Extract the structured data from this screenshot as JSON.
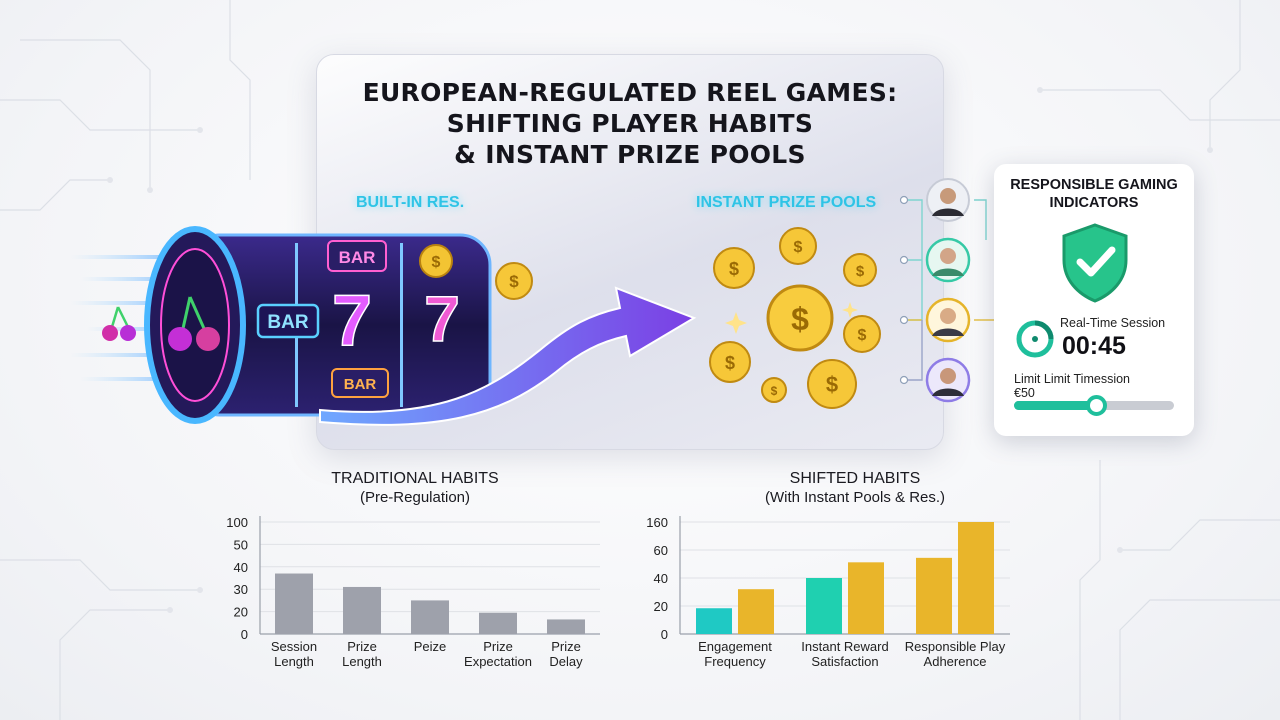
{
  "title": {
    "line1": "EUROPEAN-REGULATED REEL GAMES:",
    "line2": "SHIFTING PLAYER HABITS",
    "line3": "& INSTANT PRIZE POOLS"
  },
  "hero": {
    "left_label": "BUILT-IN RES.",
    "right_label": "INSTANT PRIZE POOLS",
    "reel_symbols": [
      "BAR",
      "7",
      "7",
      "BAR",
      "BAR"
    ]
  },
  "responsible_gaming": {
    "title_line1": "RESPONSIBLE GAMING",
    "title_line2": "INDICATORS",
    "session_label": "Real-Time Session",
    "session_time": "00:45",
    "limit_label": "Limit Limit Timession",
    "limit_value": "€50",
    "limit_fraction": 0.51
  },
  "colors": {
    "traditional_bar": "#9ea1ab",
    "engagement": "#1fc9c4",
    "gold": "#e9b52a",
    "accent_cyan": "#2ec4e6",
    "rg_green": "#1fbf9c"
  },
  "chart_data": [
    {
      "type": "bar",
      "title": "TRADITIONAL HABITS",
      "subtitle": "(Pre-Regulation)",
      "y_tick_labels": [
        "0",
        "20",
        "30",
        "40",
        "50",
        "100"
      ],
      "categories": [
        "Session Length",
        "Prize Length",
        "Peize",
        "Prize Expectation",
        "Prize Delay"
      ],
      "category_lines": [
        [
          "Session",
          "Length"
        ],
        [
          "Prize",
          "Length"
        ],
        [
          "Peize"
        ],
        [
          "Prize",
          "Expectation"
        ],
        [
          "Prize",
          "Delay"
        ]
      ],
      "values": [
        54,
        42,
        30,
        19,
        13
      ],
      "grid": true
    },
    {
      "type": "bar",
      "title": "SHIFTED HABITS",
      "subtitle": "(With Instant Pools & Res.)",
      "y_tick_labels": [
        "0",
        "20",
        "40",
        "60",
        "160"
      ],
      "categories": [
        "Engagement Frequency",
        "Instant Reward Satisfaction",
        "Responsible Play Adherence"
      ],
      "category_lines": [
        [
          "Engagement",
          "Frequency"
        ],
        [
          "Instant Reward",
          "Satisfaction"
        ],
        [
          "Responsible Play",
          "Adherence"
        ]
      ],
      "series": [
        {
          "values": [
            23,
            50,
            68
          ]
        },
        {
          "values": [
            40,
            64,
            100
          ]
        }
      ],
      "grid": true
    }
  ]
}
